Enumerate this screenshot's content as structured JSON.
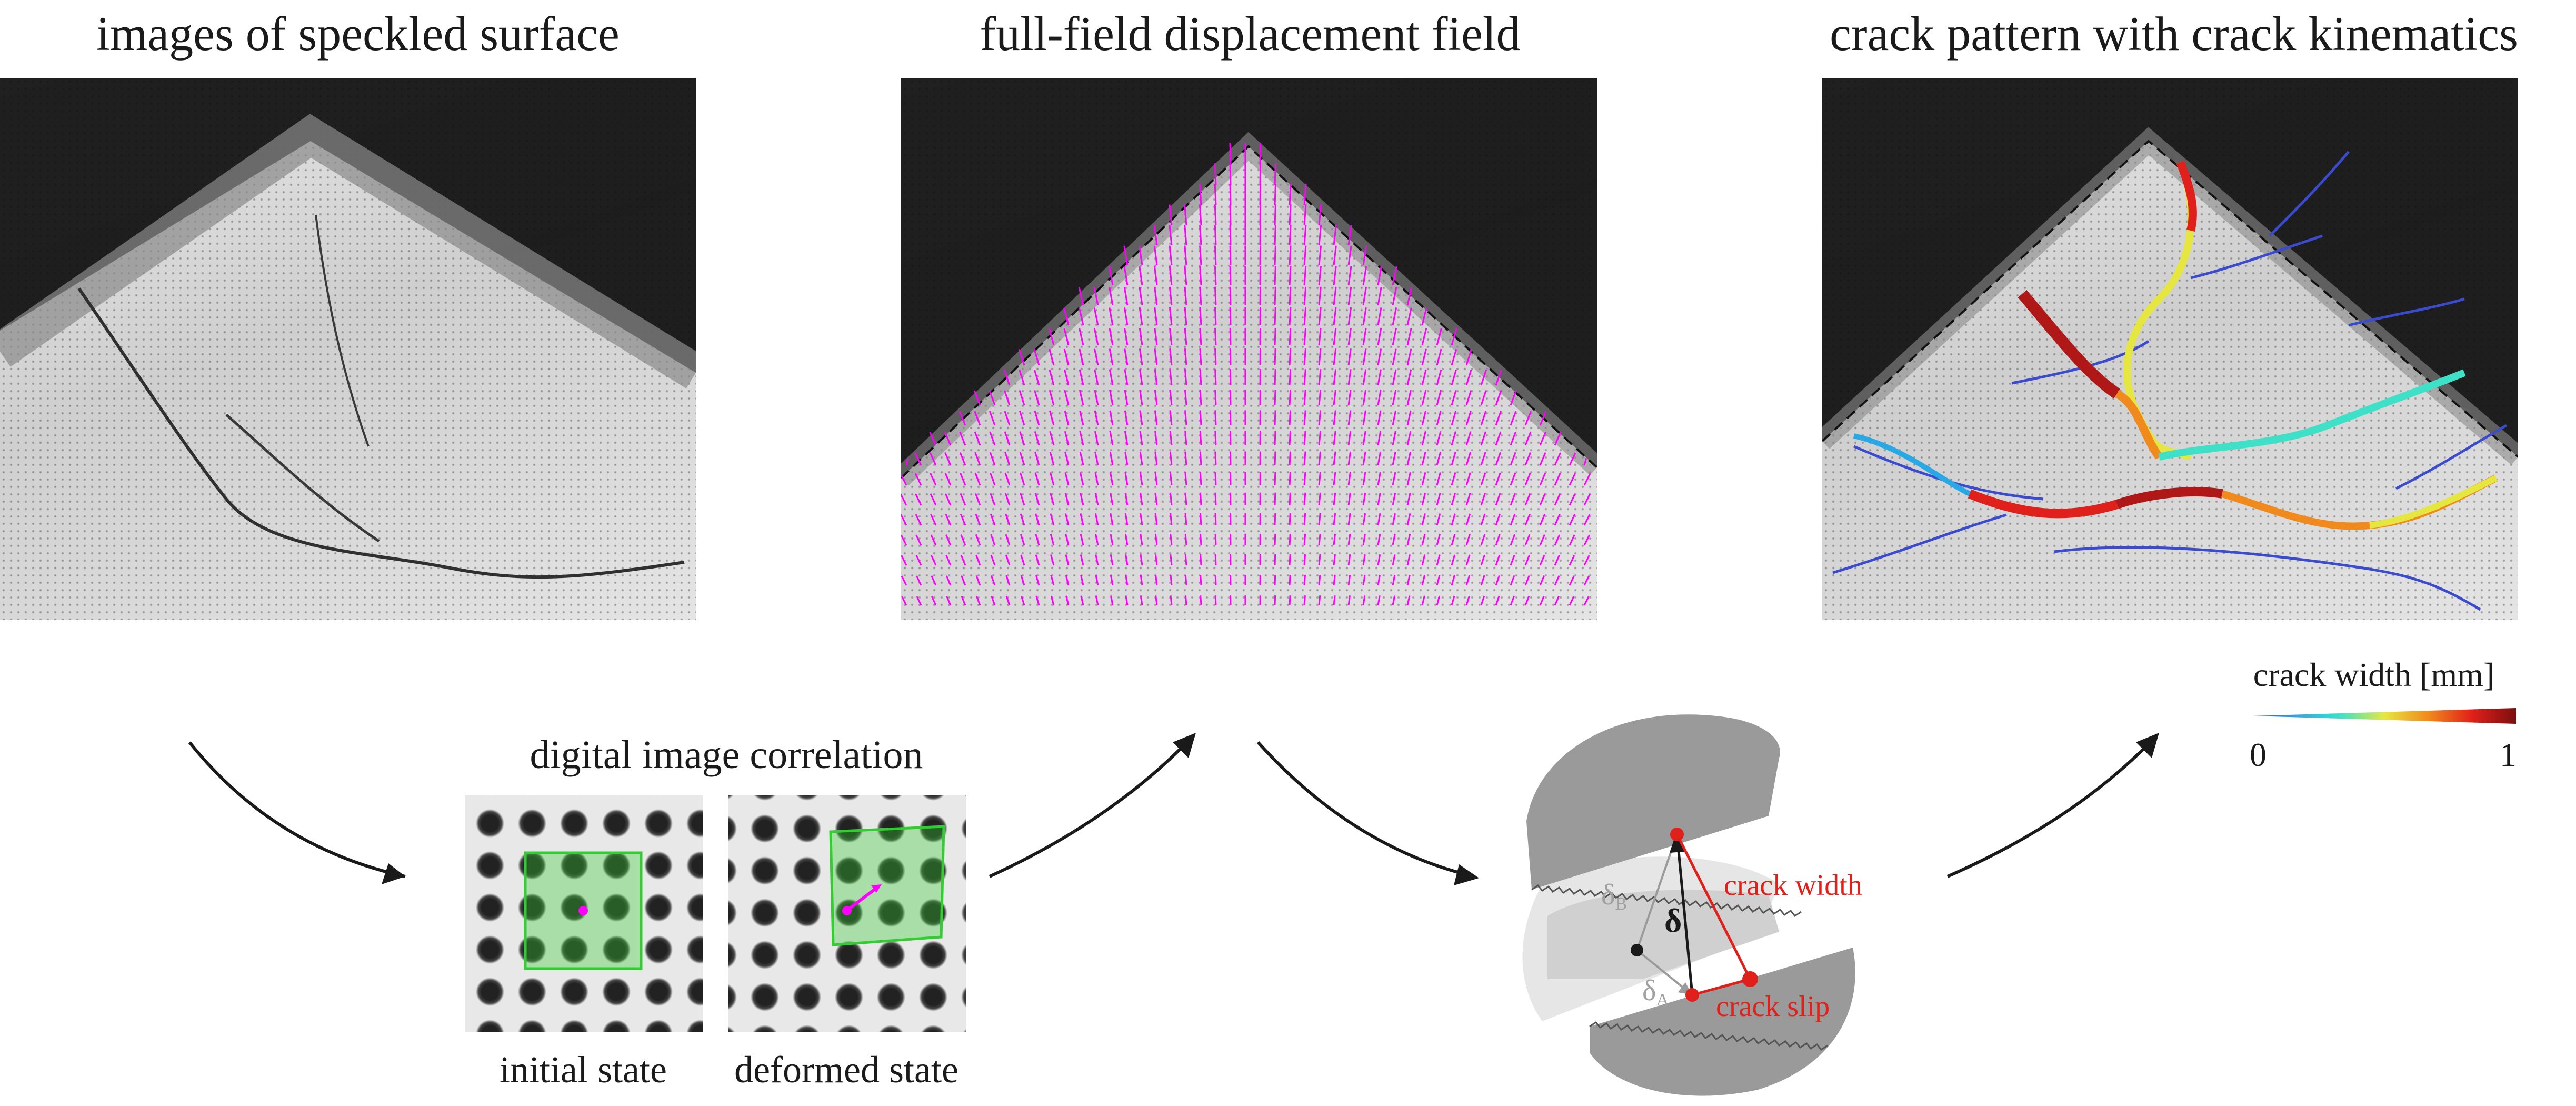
{
  "titles": {
    "images": "images of speckled surface",
    "displacement": "full-field displacement field",
    "crack_pattern": "crack pattern with crack kinematics"
  },
  "dic": {
    "title": "digital image correlation",
    "initial_label": "initial state",
    "deformed_label": "deformed state"
  },
  "colorbar": {
    "title": "crack width [mm]",
    "min_label": "0",
    "max_label": "1",
    "colors": [
      "#3a4bd0",
      "#29a8e6",
      "#3fe0c8",
      "#e6e640",
      "#f08a1c",
      "#e0201a",
      "#7a0f0f"
    ]
  },
  "kinematics": {
    "delta_label": "δ",
    "delta_a_label": "δ",
    "delta_a_sub": "A",
    "delta_b_label": "δ",
    "delta_b_sub": "B",
    "crack_width_label": "crack width",
    "crack_slip_label": "crack slip",
    "accent_color": "#e0201a"
  },
  "colors": {
    "vectors": "#ff00ff",
    "dic_box": "#33cc33"
  }
}
